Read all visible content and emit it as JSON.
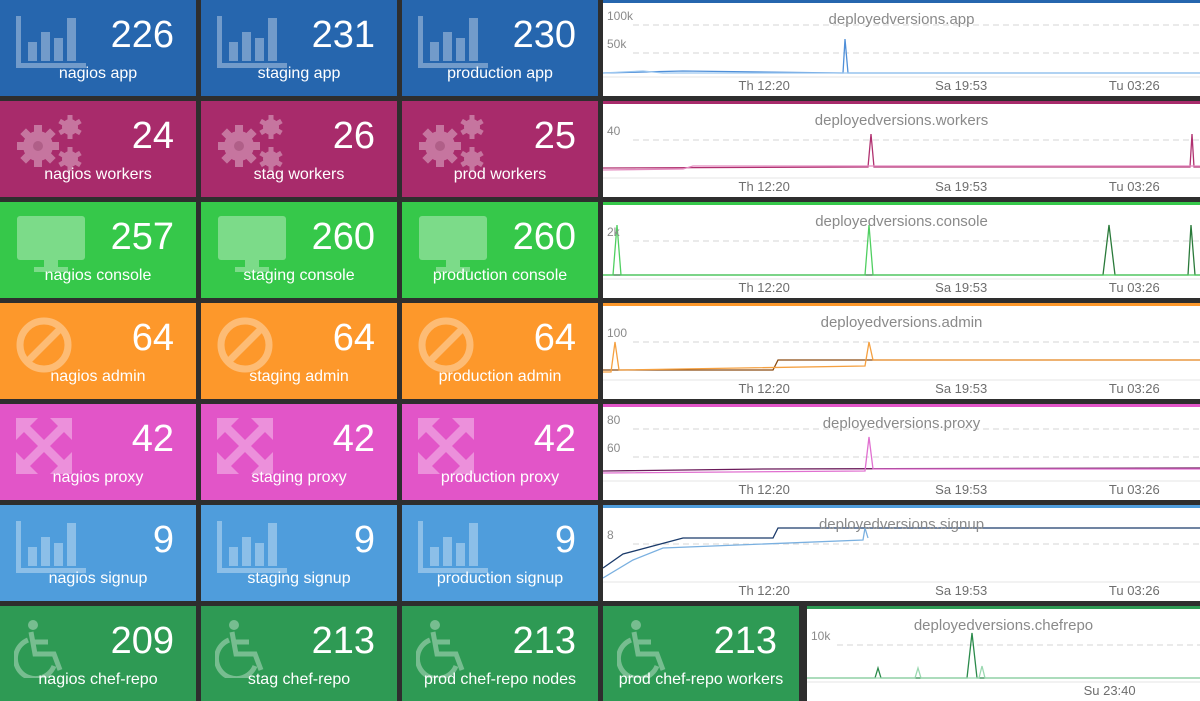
{
  "colors": {
    "blue": "#2666ae",
    "maroon": "#a82b6b",
    "green": "#36c84a",
    "orange": "#fd982b",
    "pink": "#e255c8",
    "lightblue": "#4f9ddc",
    "darkgreen": "#2e9a54"
  },
  "rows": [
    {
      "color": "#2666ae",
      "icon": "bar-chart-icon",
      "tiles": [
        {
          "value": "226",
          "label": "nagios app"
        },
        {
          "value": "231",
          "label": "staging app"
        },
        {
          "value": "230",
          "label": "production app"
        }
      ],
      "graph": {
        "title": "deployedversions.app",
        "yticks": [
          "100k",
          "50k"
        ],
        "xticks": [
          "Th 12:20",
          "Sa 19:53",
          "Tu 03:26"
        ],
        "line_colors": [
          "#4f8fd8",
          "#9cc7f0"
        ]
      }
    },
    {
      "color": "#a82b6b",
      "icon": "gears-icon",
      "tiles": [
        {
          "value": "24",
          "label": "nagios workers"
        },
        {
          "value": "26",
          "label": "stag workers"
        },
        {
          "value": "25",
          "label": "prod workers"
        }
      ],
      "graph": {
        "title": "deployedversions.workers",
        "yticks": [
          "40"
        ],
        "xticks": [
          "Th 12:20",
          "Sa 19:53",
          "Tu 03:26"
        ],
        "line_colors": [
          "#b0306f",
          "#e48cc0"
        ]
      }
    },
    {
      "color": "#36c84a",
      "icon": "monitor-icon",
      "tiles": [
        {
          "value": "257",
          "label": "nagios console"
        },
        {
          "value": "260",
          "label": "staging console"
        },
        {
          "value": "260",
          "label": "production console"
        }
      ],
      "graph": {
        "title": "deployedversions.console",
        "yticks": [
          "2k"
        ],
        "xticks": [
          "Th 12:20",
          "Sa 19:53",
          "Tu 03:26"
        ],
        "line_colors": [
          "#2a7a3a",
          "#4fcf60"
        ]
      }
    },
    {
      "color": "#fd982b",
      "icon": "ban-icon",
      "tiles": [
        {
          "value": "64",
          "label": "nagios admin"
        },
        {
          "value": "64",
          "label": "staging admin"
        },
        {
          "value": "64",
          "label": "production admin"
        }
      ],
      "graph": {
        "title": "deployedversions.admin",
        "yticks": [
          "100"
        ],
        "xticks": [
          "Th 12:20",
          "Sa 19:53",
          "Tu 03:26"
        ],
        "line_colors": [
          "#8a4a10",
          "#f5a040"
        ]
      }
    },
    {
      "color": "#e255c8",
      "icon": "expand-arrows-icon",
      "tiles": [
        {
          "value": "42",
          "label": "nagios proxy"
        },
        {
          "value": "42",
          "label": "staging proxy"
        },
        {
          "value": "42",
          "label": "production proxy"
        }
      ],
      "graph": {
        "title": "deployedversions.proxy",
        "yticks": [
          "80",
          "60"
        ],
        "xticks": [
          "Th 12:20",
          "Sa 19:53",
          "Tu 03:26"
        ],
        "line_colors": [
          "#6a1a5a",
          "#e070d0"
        ]
      }
    },
    {
      "color": "#4f9ddc",
      "icon": "bar-chart-icon",
      "tiles": [
        {
          "value": "9",
          "label": "nagios signup"
        },
        {
          "value": "9",
          "label": "staging signup"
        },
        {
          "value": "9",
          "label": "production signup"
        }
      ],
      "graph": {
        "title": "deployedversions.signup",
        "yticks": [
          "8"
        ],
        "xticks": [
          "Th 12:20",
          "Sa 19:53",
          "Tu 03:26"
        ],
        "line_colors": [
          "#1a3a6a",
          "#7ab0e0"
        ]
      }
    },
    {
      "color": "#2e9a54",
      "icon": "wheelchair-icon",
      "tiles": [
        {
          "value": "209",
          "label": "nagios chef-repo"
        },
        {
          "value": "213",
          "label": "stag chef-repo"
        },
        {
          "value": "213",
          "label": "prod chef-repo nodes"
        },
        {
          "value": "213",
          "label": "prod chef-repo workers"
        }
      ],
      "graph": {
        "title": "deployedversions.chefrepo",
        "yticks": [
          "10k"
        ],
        "xticks": [
          "Su 23:40"
        ],
        "line_colors": [
          "#2a8a4a",
          "#9ad8b0"
        ]
      }
    }
  ]
}
